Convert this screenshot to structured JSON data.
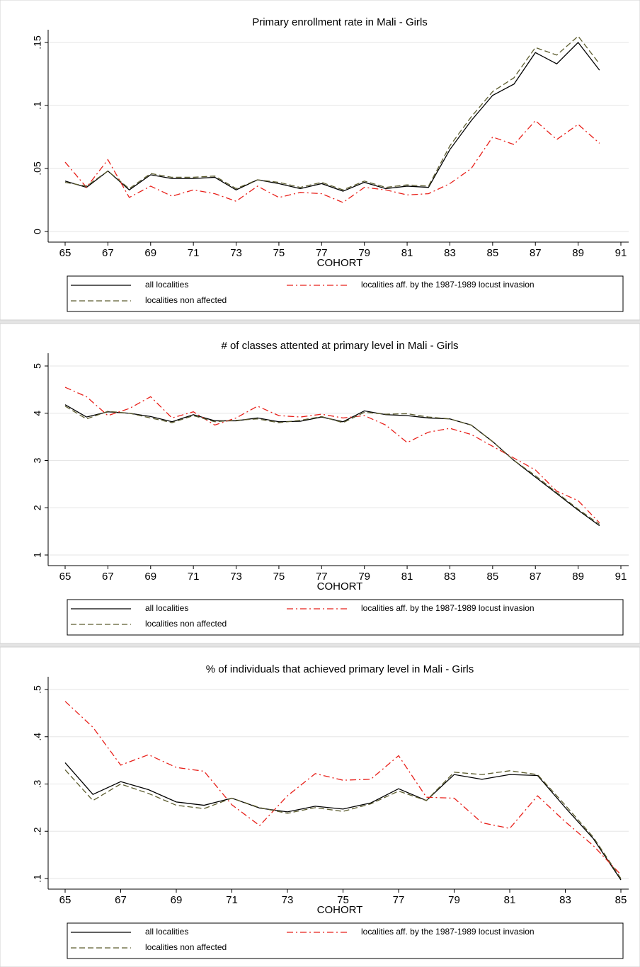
{
  "chart_data": [
    {
      "type": "line",
      "title": "Primary enrollment rate in Mali - Girls",
      "xlabel": "COHORT",
      "grid": true,
      "x": [
        65,
        66,
        67,
        68,
        69,
        70,
        71,
        72,
        73,
        74,
        75,
        76,
        77,
        78,
        79,
        80,
        81,
        82,
        83,
        84,
        85,
        86,
        87,
        88,
        89,
        90
      ],
      "xlim": [
        65,
        91
      ],
      "xticks": [
        65,
        67,
        69,
        71,
        73,
        75,
        77,
        79,
        81,
        83,
        85,
        87,
        89,
        91
      ],
      "ylim": [
        0,
        0.15
      ],
      "yticks": [
        0,
        {
          "value": 0.05,
          "label": ".05"
        },
        {
          "value": 0.1,
          "label": ".1"
        },
        {
          "value": 0.15,
          "label": ".15"
        }
      ],
      "series": [
        {
          "name": "all localities",
          "color": "#000000",
          "style": "solid",
          "values": [
            0.04,
            0.035,
            0.048,
            0.033,
            0.045,
            0.042,
            0.042,
            0.043,
            0.033,
            0.041,
            0.038,
            0.034,
            0.038,
            0.032,
            0.039,
            0.034,
            0.036,
            0.035,
            0.065,
            0.088,
            0.108,
            0.117,
            0.142,
            0.133,
            0.15,
            0.128
          ]
        },
        {
          "name": "localities aff. by the 1987-1989 locust invasion",
          "color": "#e8201a",
          "style": "dashdot",
          "values": [
            0.055,
            0.035,
            0.057,
            0.027,
            0.036,
            0.028,
            0.033,
            0.03,
            0.024,
            0.036,
            0.027,
            0.031,
            0.03,
            0.023,
            0.035,
            0.033,
            0.029,
            0.03,
            0.038,
            0.05,
            0.075,
            0.069,
            0.088,
            0.073,
            0.085,
            0.07
          ]
        },
        {
          "name": "localities non affected",
          "color": "#5c5c2e",
          "style": "dashed",
          "values": [
            0.039,
            0.036,
            0.048,
            0.034,
            0.046,
            0.043,
            0.043,
            0.044,
            0.034,
            0.041,
            0.039,
            0.035,
            0.039,
            0.033,
            0.04,
            0.035,
            0.037,
            0.036,
            0.068,
            0.091,
            0.111,
            0.122,
            0.146,
            0.14,
            0.155,
            0.133
          ]
        }
      ]
    },
    {
      "type": "line",
      "title": "# of classes attented at primary level in Mali - Girls",
      "xlabel": "COHORT",
      "grid": true,
      "x": [
        65,
        66,
        67,
        68,
        69,
        70,
        71,
        72,
        73,
        74,
        75,
        76,
        77,
        78,
        79,
        80,
        81,
        82,
        83,
        84,
        85,
        86,
        87,
        88,
        89,
        90
      ],
      "xlim": [
        65,
        91
      ],
      "xticks": [
        65,
        67,
        69,
        71,
        73,
        75,
        77,
        79,
        81,
        83,
        85,
        87,
        89,
        91
      ],
      "ylim": [
        1,
        5
      ],
      "yticks": [
        1,
        2,
        3,
        4,
        5
      ],
      "series": [
        {
          "name": "all localities",
          "color": "#000000",
          "style": "solid",
          "values": [
            4.18,
            3.92,
            4.03,
            4.0,
            3.93,
            3.82,
            3.97,
            3.84,
            3.84,
            3.9,
            3.82,
            3.83,
            3.92,
            3.82,
            4.05,
            3.97,
            3.95,
            3.9,
            3.88,
            3.75,
            3.4,
            3.0,
            2.65,
            2.3,
            1.95,
            1.62
          ]
        },
        {
          "name": "localities aff. by the 1987-1989 locust invasion",
          "color": "#e8201a",
          "style": "dashdot",
          "values": [
            4.55,
            4.35,
            3.95,
            4.1,
            4.35,
            3.9,
            4.03,
            3.75,
            3.9,
            4.15,
            3.95,
            3.92,
            3.98,
            3.9,
            3.95,
            3.75,
            3.38,
            3.6,
            3.68,
            3.55,
            3.3,
            3.05,
            2.8,
            2.35,
            2.15,
            1.68
          ]
        },
        {
          "name": "localities non affected",
          "color": "#5c5c2e",
          "style": "dashed",
          "values": [
            4.15,
            3.88,
            4.04,
            4.0,
            3.9,
            3.8,
            3.95,
            3.82,
            3.85,
            3.88,
            3.8,
            3.85,
            3.93,
            3.8,
            4.02,
            3.98,
            3.99,
            3.92,
            3.88,
            3.75,
            3.4,
            3.0,
            2.68,
            2.32,
            1.97,
            1.65
          ]
        }
      ]
    },
    {
      "type": "line",
      "title": "% of individuals that achieved primary level in Mali - Girls",
      "xlabel": "COHORT",
      "grid": true,
      "x": [
        65,
        66,
        67,
        68,
        69,
        70,
        71,
        72,
        73,
        74,
        75,
        76,
        77,
        78,
        79,
        80,
        81,
        82,
        83,
        84,
        85
      ],
      "xlim": [
        65,
        85
      ],
      "xticks": [
        65,
        67,
        69,
        71,
        73,
        75,
        77,
        79,
        81,
        83,
        85
      ],
      "ylim": [
        0.1,
        0.5
      ],
      "yticks": [
        {
          "value": 0.1,
          "label": ".1"
        },
        {
          "value": 0.2,
          "label": ".2"
        },
        {
          "value": 0.3,
          "label": ".3"
        },
        {
          "value": 0.4,
          "label": ".4"
        },
        {
          "value": 0.5,
          "label": ".5"
        }
      ],
      "series": [
        {
          "name": "all localities",
          "color": "#000000",
          "style": "solid",
          "values": [
            0.345,
            0.278,
            0.305,
            0.288,
            0.262,
            0.255,
            0.27,
            0.249,
            0.241,
            0.253,
            0.247,
            0.26,
            0.29,
            0.265,
            0.32,
            0.31,
            0.32,
            0.318,
            0.25,
            0.185,
            0.097
          ]
        },
        {
          "name": "localities aff. by the 1987-1989 locust invasion",
          "color": "#e8201a",
          "style": "dashdot",
          "values": [
            0.475,
            0.42,
            0.34,
            0.362,
            0.335,
            0.327,
            0.256,
            0.212,
            0.275,
            0.322,
            0.308,
            0.31,
            0.36,
            0.272,
            0.27,
            0.218,
            0.206,
            0.275,
            0.22,
            0.17,
            0.108
          ]
        },
        {
          "name": "localities non affected",
          "color": "#5c5c2e",
          "style": "dashed",
          "values": [
            0.33,
            0.265,
            0.3,
            0.28,
            0.255,
            0.248,
            0.27,
            0.25,
            0.238,
            0.25,
            0.242,
            0.258,
            0.285,
            0.265,
            0.325,
            0.32,
            0.328,
            0.32,
            0.255,
            0.188,
            0.1
          ]
        }
      ]
    }
  ]
}
